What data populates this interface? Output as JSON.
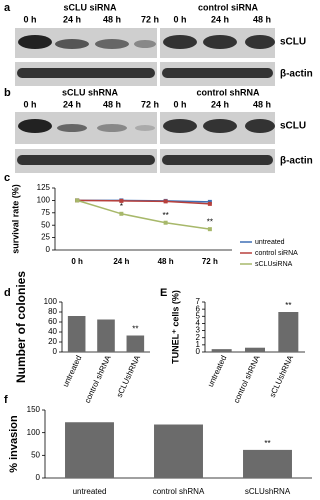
{
  "panels": {
    "a": "a",
    "b": "b",
    "c": "c",
    "d": "d",
    "e": "E",
    "f": "f"
  },
  "blots": [
    {
      "left_header": "sCLU siRNA",
      "right_header": "control siRNA",
      "left_times": [
        "0 h",
        "24 h",
        "48 h",
        "72 h"
      ],
      "right_times": [
        "0 h",
        "24 h",
        "48 h"
      ],
      "rows": [
        "sCLU",
        "β-actin"
      ]
    },
    {
      "left_header": "sCLU shRNA",
      "right_header": "control shRNA",
      "left_times": [
        "0 h",
        "24 h",
        "48 h",
        "72 h"
      ],
      "right_times": [
        "0 h",
        "24 h",
        "48 h"
      ],
      "rows": [
        "sCLU",
        "β-actin"
      ]
    }
  ],
  "chart_data": [
    {
      "type": "line",
      "y_label": "survival rate (%)",
      "categories": [
        "0 h",
        "24 h",
        "48 h",
        "72 h"
      ],
      "ylim": [
        0,
        125
      ],
      "yticks": [
        0,
        25,
        50,
        75,
        100,
        125
      ],
      "legend": "right",
      "series": [
        {
          "name": "untreated",
          "color": "#3f6fb5",
          "values": [
            100,
            100,
            99,
            97
          ]
        },
        {
          "name": "control siRNA",
          "color": "#b8403c",
          "values": [
            100,
            99,
            98,
            93
          ]
        },
        {
          "name": "sCLUsiRNA",
          "color": "#a7b86a",
          "values": [
            100,
            73,
            55,
            42
          ],
          "sig_labels": [
            null,
            "*",
            "**",
            "**"
          ]
        }
      ]
    },
    {
      "type": "bar",
      "y_label": "Number of colonies",
      "categories": [
        "untreated",
        "control shRNA",
        "sCLUshRNA"
      ],
      "values": [
        72,
        65,
        33
      ],
      "sig_labels": [
        null,
        null,
        "**"
      ],
      "color": "#6b6b6b",
      "ylim": [
        0,
        100
      ],
      "yticks": [
        0,
        20,
        40,
        60,
        80,
        100
      ]
    },
    {
      "type": "bar",
      "y_label": "TUNEL⁺ cells (%)",
      "categories": [
        "untreated",
        "control shRNA",
        "sCLUshRNA"
      ],
      "values": [
        0.4,
        0.6,
        5.6
      ],
      "sig_labels": [
        null,
        null,
        "**"
      ],
      "color": "#6b6b6b",
      "ylim": [
        0,
        7
      ],
      "yticks": [
        0,
        1,
        2,
        3,
        4,
        5,
        6,
        7
      ]
    },
    {
      "type": "bar",
      "y_label": "% invasion",
      "categories": [
        "untreated",
        "control shRNA",
        "sCLUshRNA"
      ],
      "values": [
        123,
        118,
        62
      ],
      "sig_labels": [
        null,
        null,
        "**"
      ],
      "color": "#6b6b6b",
      "ylim": [
        0,
        150
      ],
      "yticks": [
        0,
        50,
        100,
        150
      ]
    }
  ]
}
